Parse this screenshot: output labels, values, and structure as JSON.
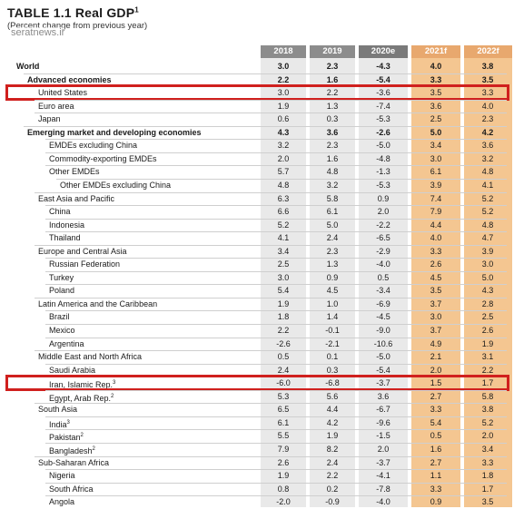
{
  "table": {
    "title_prefix": "TABLE 1.1",
    "title_main": "Real GDP",
    "title_sup": "1",
    "subtitle": "(Percent change from previous year)",
    "watermark": "seratnews.ir",
    "columns": [
      "2018",
      "2019",
      "2020e",
      "2021f",
      "2022f"
    ],
    "rows": [
      {
        "label": "World",
        "values": [
          "3.0",
          "2.3",
          "-4.3",
          "4.0",
          "3.8"
        ],
        "indent": 0,
        "bold": true
      },
      {
        "label": "Advanced economies",
        "values": [
          "2.2",
          "1.6",
          "-5.4",
          "3.3",
          "3.5"
        ],
        "indent": 1,
        "bold": true
      },
      {
        "label": "United States",
        "values": [
          "3.0",
          "2.2",
          "-3.6",
          "3.5",
          "3.3"
        ],
        "indent": 2,
        "bold": false,
        "highlight": true
      },
      {
        "label": "Euro area",
        "values": [
          "1.9",
          "1.3",
          "-7.4",
          "3.6",
          "4.0"
        ],
        "indent": 2,
        "bold": false
      },
      {
        "label": "Japan",
        "values": [
          "0.6",
          "0.3",
          "-5.3",
          "2.5",
          "2.3"
        ],
        "indent": 2,
        "bold": false
      },
      {
        "label": "Emerging market and developing economies",
        "values": [
          "4.3",
          "3.6",
          "-2.6",
          "5.0",
          "4.2"
        ],
        "indent": 1,
        "bold": true
      },
      {
        "label": "EMDEs excluding China",
        "values": [
          "3.2",
          "2.3",
          "-5.0",
          "3.4",
          "3.6"
        ],
        "indent": 3,
        "bold": false
      },
      {
        "label": "Commodity-exporting EMDEs",
        "values": [
          "2.0",
          "1.6",
          "-4.8",
          "3.0",
          "3.2"
        ],
        "indent": 3,
        "bold": false
      },
      {
        "label": "Other EMDEs",
        "values": [
          "5.7",
          "4.8",
          "-1.3",
          "6.1",
          "4.8"
        ],
        "indent": 3,
        "bold": false
      },
      {
        "label": "Other EMDEs excluding China",
        "values": [
          "4.8",
          "3.2",
          "-5.3",
          "3.9",
          "4.1"
        ],
        "indent": 4,
        "bold": false
      },
      {
        "label": "East Asia and Pacific",
        "values": [
          "6.3",
          "5.8",
          "0.9",
          "7.4",
          "5.2"
        ],
        "indent": 2,
        "bold": false
      },
      {
        "label": "China",
        "values": [
          "6.6",
          "6.1",
          "2.0",
          "7.9",
          "5.2"
        ],
        "indent": 3,
        "bold": false
      },
      {
        "label": "Indonesia",
        "values": [
          "5.2",
          "5.0",
          "-2.2",
          "4.4",
          "4.8"
        ],
        "indent": 3,
        "bold": false
      },
      {
        "label": "Thailand",
        "values": [
          "4.1",
          "2.4",
          "-6.5",
          "4.0",
          "4.7"
        ],
        "indent": 3,
        "bold": false
      },
      {
        "label": "Europe and Central Asia",
        "values": [
          "3.4",
          "2.3",
          "-2.9",
          "3.3",
          "3.9"
        ],
        "indent": 2,
        "bold": false
      },
      {
        "label": "Russian Federation",
        "values": [
          "2.5",
          "1.3",
          "-4.0",
          "2.6",
          "3.0"
        ],
        "indent": 3,
        "bold": false
      },
      {
        "label": "Turkey",
        "values": [
          "3.0",
          "0.9",
          "0.5",
          "4.5",
          "5.0"
        ],
        "indent": 3,
        "bold": false
      },
      {
        "label": "Poland",
        "values": [
          "5.4",
          "4.5",
          "-3.4",
          "3.5",
          "4.3"
        ],
        "indent": 3,
        "bold": false
      },
      {
        "label": "Latin America and the Caribbean",
        "values": [
          "1.9",
          "1.0",
          "-6.9",
          "3.7",
          "2.8"
        ],
        "indent": 2,
        "bold": false
      },
      {
        "label": "Brazil",
        "values": [
          "1.8",
          "1.4",
          "-4.5",
          "3.0",
          "2.5"
        ],
        "indent": 3,
        "bold": false
      },
      {
        "label": "Mexico",
        "values": [
          "2.2",
          "-0.1",
          "-9.0",
          "3.7",
          "2.6"
        ],
        "indent": 3,
        "bold": false
      },
      {
        "label": "Argentina",
        "values": [
          "-2.6",
          "-2.1",
          "-10.6",
          "4.9",
          "1.9"
        ],
        "indent": 3,
        "bold": false
      },
      {
        "label": "Middle East and North Africa",
        "values": [
          "0.5",
          "0.1",
          "-5.0",
          "2.1",
          "3.1"
        ],
        "indent": 2,
        "bold": false
      },
      {
        "label": "Saudi Arabia",
        "values": [
          "2.4",
          "0.3",
          "-5.4",
          "2.0",
          "2.2"
        ],
        "indent": 3,
        "bold": false
      },
      {
        "label": "Iran, Islamic Rep.",
        "sup": "3",
        "values": [
          "-6.0",
          "-6.8",
          "-3.7",
          "1.5",
          "1.7"
        ],
        "indent": 3,
        "bold": false,
        "highlight": true
      },
      {
        "label": "Egypt, Arab Rep.",
        "sup": "2",
        "values": [
          "5.3",
          "5.6",
          "3.6",
          "2.7",
          "5.8"
        ],
        "indent": 3,
        "bold": false
      },
      {
        "label": "South Asia",
        "values": [
          "6.5",
          "4.4",
          "-6.7",
          "3.3",
          "3.8"
        ],
        "indent": 2,
        "bold": false
      },
      {
        "label": "India",
        "sup": "3",
        "values": [
          "6.1",
          "4.2",
          "-9.6",
          "5.4",
          "5.2"
        ],
        "indent": 3,
        "bold": false
      },
      {
        "label": "Pakistan",
        "sup": "2",
        "values": [
          "5.5",
          "1.9",
          "-1.5",
          "0.5",
          "2.0"
        ],
        "indent": 3,
        "bold": false
      },
      {
        "label": "Bangladesh",
        "sup": "2",
        "values": [
          "7.9",
          "8.2",
          "2.0",
          "1.6",
          "3.4"
        ],
        "indent": 3,
        "bold": false
      },
      {
        "label": "Sub-Saharan Africa",
        "values": [
          "2.6",
          "2.4",
          "-3.7",
          "2.7",
          "3.3"
        ],
        "indent": 2,
        "bold": false
      },
      {
        "label": "Nigeria",
        "values": [
          "1.9",
          "2.2",
          "-4.1",
          "1.1",
          "1.8"
        ],
        "indent": 3,
        "bold": false
      },
      {
        "label": "South Africa",
        "values": [
          "0.8",
          "0.2",
          "-7.8",
          "3.3",
          "1.7"
        ],
        "indent": 3,
        "bold": false
      },
      {
        "label": "Angola",
        "values": [
          "-2.0",
          "-0.9",
          "-4.0",
          "0.9",
          "3.5"
        ],
        "indent": 3,
        "bold": false
      }
    ]
  }
}
